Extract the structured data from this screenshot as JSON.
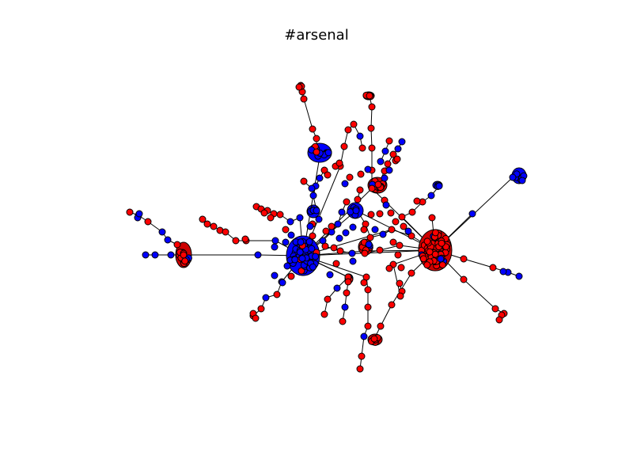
{
  "figure": {
    "title": "#arsenal"
  },
  "colors": {
    "node_red": "#ff0000",
    "node_blue": "#0000ff",
    "edge": "#000000",
    "outline": "#000000"
  }
}
